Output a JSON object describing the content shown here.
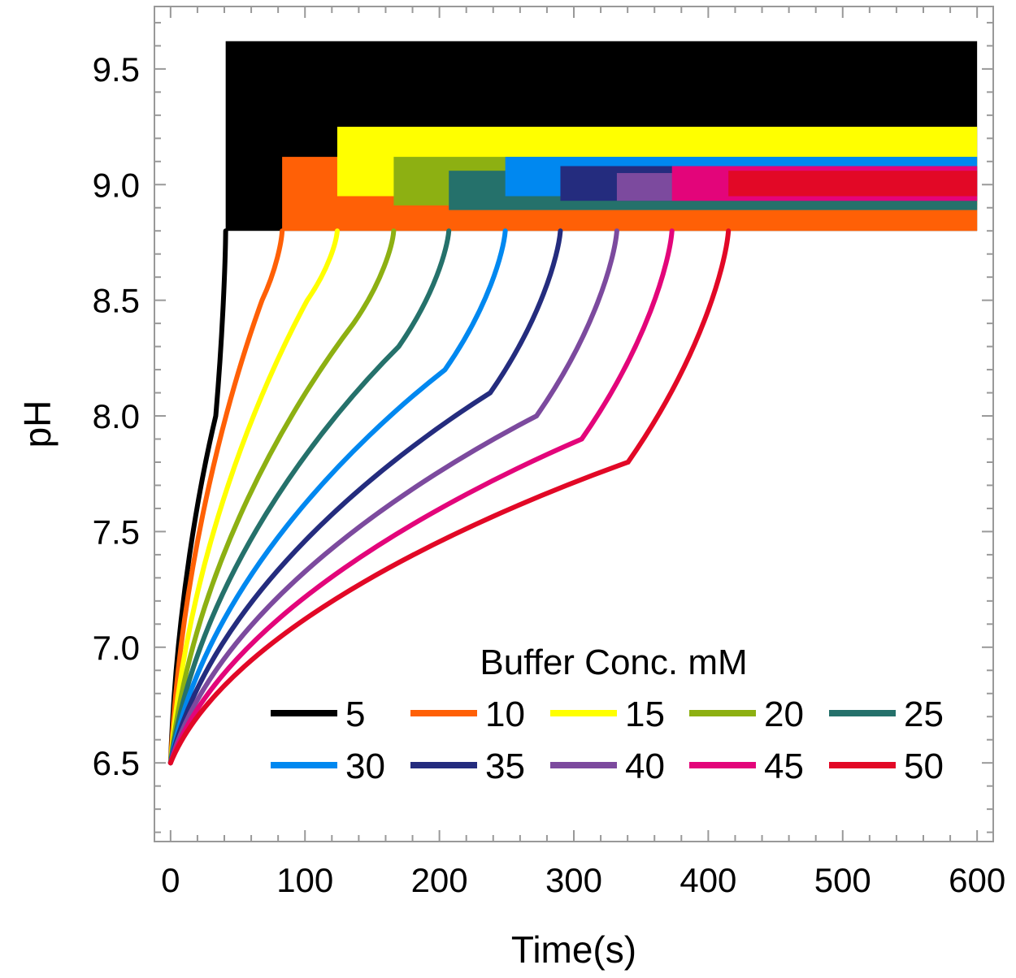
{
  "chart_data": {
    "type": "line",
    "xlabel": "Time(s)",
    "ylabel": "pH",
    "xlim": [
      -12,
      612
    ],
    "ylim": [
      6.16,
      9.77
    ],
    "xticks": [
      0,
      100,
      200,
      300,
      400,
      500,
      600
    ],
    "yticks": [
      6.5,
      7.0,
      7.5,
      8.0,
      8.5,
      9.0,
      9.5
    ],
    "xtick_labels": [
      "0",
      "100",
      "200",
      "300",
      "400",
      "500",
      "600"
    ],
    "ytick_labels": [
      "6.5",
      "7.0",
      "7.5",
      "8.0",
      "8.5",
      "9.0",
      "9.5"
    ],
    "grid": false,
    "legend": {
      "title": "Buffer Conc. mM",
      "placement": "bottom-right"
    },
    "series": [
      {
        "name": "5",
        "color": "#000000",
        "t_jump": 41,
        "y_mid": 8.0,
        "band": [
          8.8,
          9.62
        ]
      },
      {
        "name": "10",
        "color": "#FF6006",
        "t_jump": 83,
        "y_mid": 8.5,
        "band": [
          8.8,
          9.12
        ]
      },
      {
        "name": "15",
        "color": "#FFFF00",
        "t_jump": 124,
        "y_mid": 8.5,
        "band": [
          8.95,
          9.25
        ]
      },
      {
        "name": "20",
        "color": "#8DB012",
        "t_jump": 166,
        "y_mid": 8.4,
        "band": [
          8.91,
          9.12
        ]
      },
      {
        "name": "25",
        "color": "#25716B",
        "t_jump": 207,
        "y_mid": 8.3,
        "band": [
          8.89,
          9.06
        ]
      },
      {
        "name": "30",
        "color": "#0088F0",
        "t_jump": 249,
        "y_mid": 8.2,
        "band": [
          8.95,
          9.12
        ]
      },
      {
        "name": "35",
        "color": "#242C7E",
        "t_jump": 290,
        "y_mid": 8.1,
        "band": [
          8.93,
          9.08
        ]
      },
      {
        "name": "40",
        "color": "#7C4A9E",
        "t_jump": 332,
        "y_mid": 8.0,
        "band": [
          8.93,
          9.05
        ]
      },
      {
        "name": "45",
        "color": "#E3057A",
        "t_jump": 373,
        "y_mid": 7.9,
        "band": [
          8.93,
          9.08
        ]
      },
      {
        "name": "50",
        "color": "#E20826",
        "t_jump": 415,
        "y_mid": 7.8,
        "band": [
          8.95,
          9.06
        ]
      }
    ]
  }
}
